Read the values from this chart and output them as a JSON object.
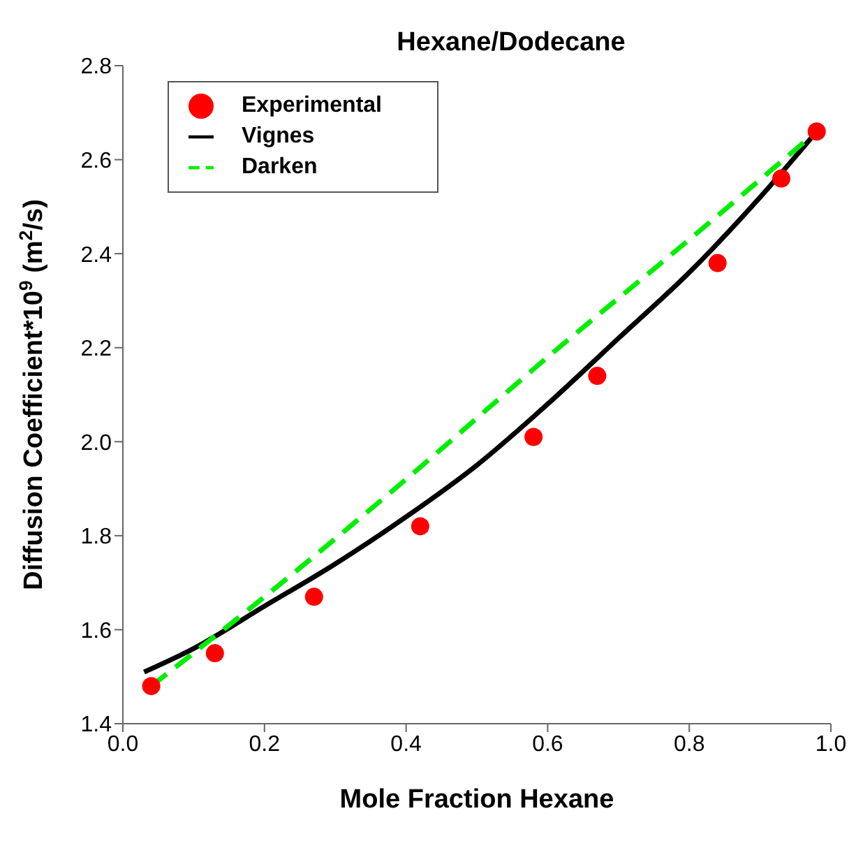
{
  "chart_data": {
    "type": "line",
    "title": "Hexane/Dodecane",
    "xlabel": "Mole Fraction Hexane",
    "ylabel": "Diffusion Coefficient*10$^{9}$ (m$^{2}$/s)",
    "xlim": [
      0,
      1
    ],
    "ylim": [
      1.4,
      2.8
    ],
    "xticks": [
      {
        "value": 0,
        "label": "0.0"
      },
      {
        "value": 0.2,
        "label": "0.2"
      },
      {
        "value": 0.4,
        "label": "0.4"
      },
      {
        "value": 0.6,
        "label": "0.6"
      },
      {
        "value": 0.8,
        "label": "0.8"
      },
      {
        "value": 1,
        "label": "1.0"
      }
    ],
    "yticks": [
      {
        "value": 1.4,
        "label": "1.4"
      },
      {
        "value": 1.6,
        "label": "1.6"
      },
      {
        "value": 1.8,
        "label": "1.8"
      },
      {
        "value": 2,
        "label": "2.0"
      },
      {
        "value": 2.2,
        "label": "2.2"
      },
      {
        "value": 2.4,
        "label": "2.4"
      },
      {
        "value": 2.6,
        "label": "2.6"
      },
      {
        "value": 2.8,
        "label": "2.8"
      }
    ],
    "grid": false,
    "legend": "top left",
    "series": [
      {
        "name": "Experimental",
        "type": "scatter",
        "marker": "circle",
        "color": "#ff0000",
        "x": [
          0.04,
          0.13,
          0.27,
          0.42,
          0.58,
          0.67,
          0.84,
          0.93,
          0.98
        ],
        "values": [
          1.48,
          1.55,
          1.67,
          1.82,
          2.01,
          2.14,
          2.38,
          2.56,
          2.66
        ]
      },
      {
        "name": "Vignes",
        "line_style": "solid",
        "color": "#000000",
        "x": [
          0.03,
          0.1,
          0.2,
          0.3,
          0.4,
          0.5,
          0.6,
          0.7,
          0.8,
          0.9,
          0.98
        ],
        "values": [
          1.51,
          1.56,
          1.65,
          1.74,
          1.84,
          1.95,
          2.08,
          2.22,
          2.36,
          2.52,
          2.66
        ]
      },
      {
        "name": "Darken",
        "line_style": "dashed",
        "color": "#00ee00",
        "x": [
          0.04,
          0.2,
          0.4,
          0.6,
          0.8,
          0.98
        ],
        "values": [
          1.48,
          1.67,
          1.92,
          2.18,
          2.43,
          2.66
        ]
      }
    ]
  }
}
